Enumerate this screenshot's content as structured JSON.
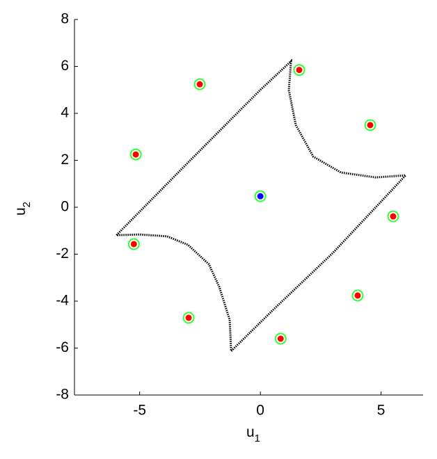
{
  "chart_data": {
    "type": "scatter",
    "xlabel": "u",
    "xlabel_subscript": "1",
    "ylabel": "u",
    "ylabel_subscript": "2",
    "xlim": [
      -7.7,
      6.74
    ],
    "ylim": [
      -8,
      8
    ],
    "xticks": [
      -5,
      0,
      5
    ],
    "yticks": [
      -8,
      -6,
      -4,
      -2,
      0,
      2,
      4,
      6,
      8
    ],
    "curve": {
      "color": "#000000",
      "x": [
        -5.96,
        -3.0,
        0.0,
        1.27,
        1.18,
        1.47,
        2.19,
        3.34,
        4.78,
        6.02,
        3.0,
        0.5,
        -1.21,
        -1.27,
        -1.7,
        -2.13,
        -3.0,
        -3.86,
        -5.0,
        -5.96
      ],
      "y": [
        -1.19,
        1.9,
        5.0,
        6.22,
        4.98,
        3.5,
        2.16,
        1.48,
        1.27,
        1.36,
        -1.95,
        -4.4,
        -6.13,
        -4.8,
        -3.4,
        -2.43,
        -1.6,
        -1.24,
        -1.16,
        -1.19
      ]
    },
    "series": [
      {
        "color": "#ff0000",
        "edgecolor": "#33ff33",
        "x": [
          -2.51,
          1.61,
          -5.16,
          4.55,
          5.5,
          -5.24,
          -2.97,
          4.03,
          0.84
        ],
        "y": [
          5.24,
          5.85,
          2.25,
          3.5,
          -0.39,
          -1.57,
          -4.71,
          -3.76,
          -5.6
        ]
      },
      {
        "color": "#0000ff",
        "edgecolor": "#33ff33",
        "x": [
          0
        ],
        "y": [
          0.47
        ]
      }
    ]
  }
}
